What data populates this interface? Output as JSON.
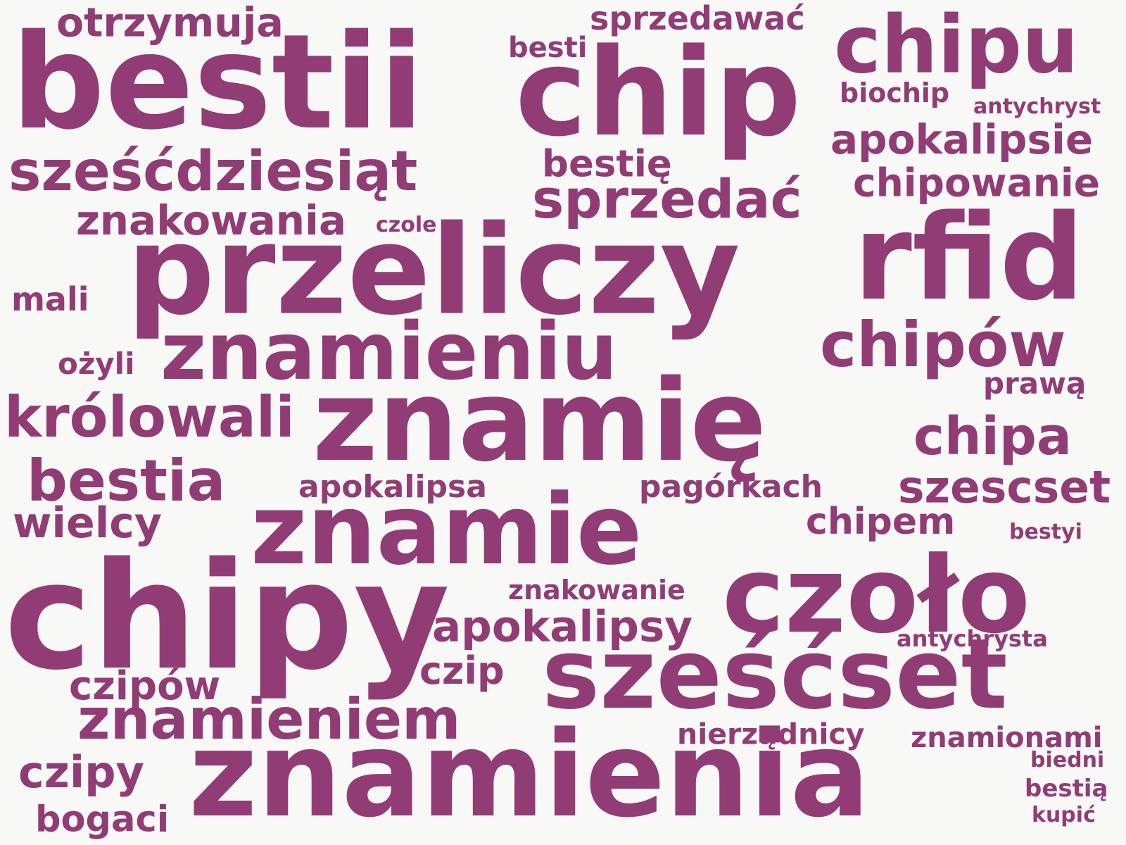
{
  "color": "#923c75",
  "background": "#f8f8f6",
  "words": [
    {
      "text": "bestii"
    },
    {
      "text": "chip"
    },
    {
      "text": "chipu"
    },
    {
      "text": "otrzymuja"
    },
    {
      "text": "sprzedawać"
    },
    {
      "text": "besti"
    },
    {
      "text": "biochip"
    },
    {
      "text": "antychryst"
    },
    {
      "text": "apokalipsie"
    },
    {
      "text": "sześćdziesiąt"
    },
    {
      "text": "bestię"
    },
    {
      "text": "chipowanie"
    },
    {
      "text": "sprzedać"
    },
    {
      "text": "znakowania"
    },
    {
      "text": "czole"
    },
    {
      "text": "przeliczy"
    },
    {
      "text": "rfid"
    },
    {
      "text": "mali"
    },
    {
      "text": "znamieniu"
    },
    {
      "text": "chipów"
    },
    {
      "text": "ożyli"
    },
    {
      "text": "prawą"
    },
    {
      "text": "królowali"
    },
    {
      "text": "znamię"
    },
    {
      "text": "chipa"
    },
    {
      "text": "bestia"
    },
    {
      "text": "apokalipsa"
    },
    {
      "text": "pagórkach"
    },
    {
      "text": "szescset"
    },
    {
      "text": "wielcy"
    },
    {
      "text": "znamie"
    },
    {
      "text": "chipem"
    },
    {
      "text": "bestyi"
    },
    {
      "text": "chipy"
    },
    {
      "text": "czoło"
    },
    {
      "text": "znakowanie"
    },
    {
      "text": "apokalipsy"
    },
    {
      "text": "antychrysta"
    },
    {
      "text": "czip"
    },
    {
      "text": "sześćset"
    },
    {
      "text": "czipów"
    },
    {
      "text": "znamieniem"
    },
    {
      "text": "nierządnicy"
    },
    {
      "text": "znamionami"
    },
    {
      "text": "znamienia"
    },
    {
      "text": "biedni"
    },
    {
      "text": "czipy"
    },
    {
      "text": "bestią"
    },
    {
      "text": "bogaci"
    },
    {
      "text": "kupić"
    }
  ]
}
